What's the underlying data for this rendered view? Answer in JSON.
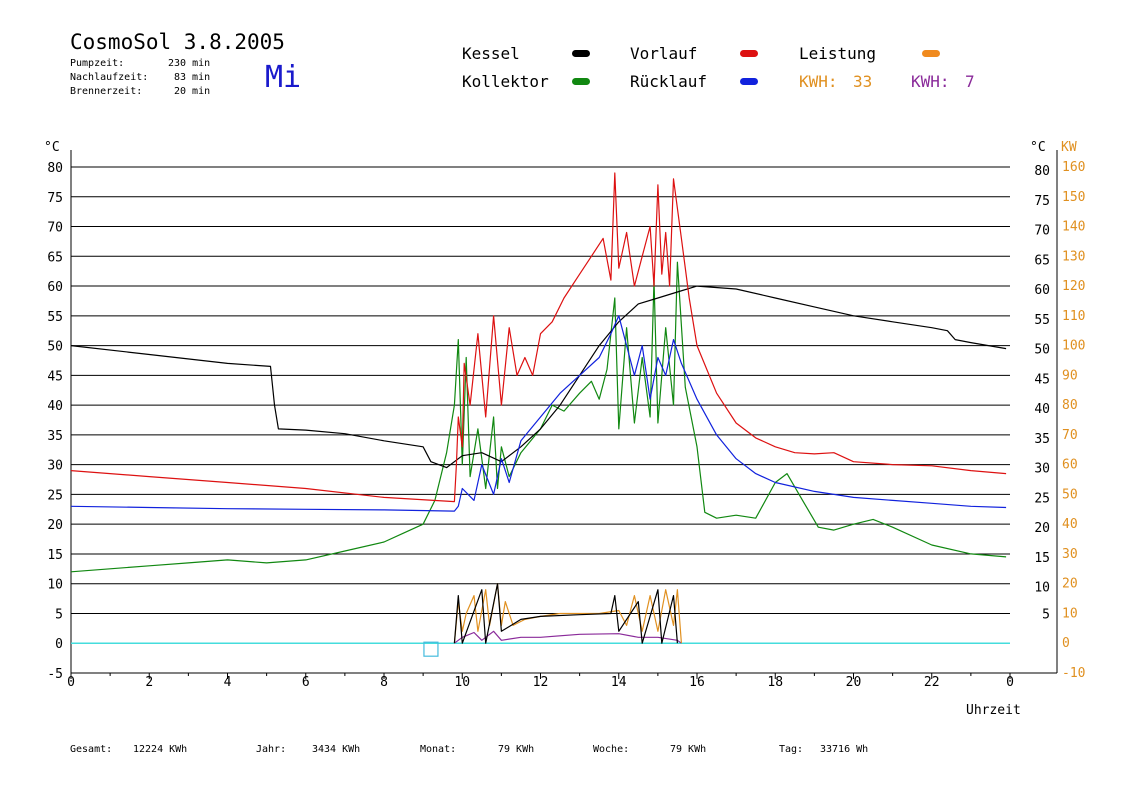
{
  "header": {
    "title": "CosmoSol 3.8.2005",
    "day": "Mi",
    "stats": [
      {
        "label": "Pumpzeit:",
        "value": "230 min"
      },
      {
        "label": "Nachlaufzeit:",
        "value": "83 min"
      },
      {
        "label": "Brennerzeit:",
        "value": "20 min"
      }
    ]
  },
  "legend": {
    "kessel": {
      "label": "Kessel",
      "color": "#000000"
    },
    "vorlauf": {
      "label": "Vorlauf",
      "color": "#dd1111"
    },
    "leistung": {
      "label": "Leistung",
      "color": "#f08a1e"
    },
    "kollektor": {
      "label": "Kollektor",
      "color": "#118811"
    },
    "ruecklauf": {
      "label": "Rücklauf",
      "color": "#1122dd"
    },
    "kwh1": {
      "label": "KWH:",
      "value": "33",
      "color": "#e09020"
    },
    "kwh2": {
      "label": "KWH:",
      "value": "7",
      "color": "#8a2a9a"
    }
  },
  "footer": [
    {
      "label": "Gesamt:",
      "value": "12224 KWh"
    },
    {
      "label": "Jahr:",
      "value": "3434 KWh"
    },
    {
      "label": "Monat:",
      "value": "79 KWh"
    },
    {
      "label": "Woche:",
      "value": "79 KWh"
    },
    {
      "label": "Tag:",
      "value": "33716 Wh"
    }
  ],
  "chart_data": {
    "type": "line",
    "xlabel": "Uhrzeit",
    "ylabel_left": "°C",
    "ylabel_right_temp": "°C",
    "ylabel_right_power": "KW",
    "xlim": [
      0,
      24
    ],
    "ylim": [
      -5,
      80
    ],
    "x_ticks": [
      "0",
      "2",
      "4",
      "6",
      "8",
      "10",
      "12",
      "14",
      "16",
      "18",
      "20",
      "22",
      "0"
    ],
    "y_ticks_left": [
      "80",
      "75",
      "70",
      "65",
      "60",
      "55",
      "50",
      "45",
      "40",
      "35",
      "30",
      "25",
      "20",
      "15",
      "10",
      "5",
      "0",
      "-5"
    ],
    "y_ticks_right_temp": [
      "80",
      "75",
      "70",
      "65",
      "60",
      "55",
      "50",
      "45",
      "40",
      "35",
      "30",
      "25",
      "20",
      "15",
      "10",
      "5"
    ],
    "y_ticks_right_power": [
      "160",
      "150",
      "140",
      "130",
      "120",
      "110",
      "100",
      "90",
      "80",
      "70",
      "60",
      "50",
      "40",
      "30",
      "20",
      "10",
      "0",
      "-10"
    ],
    "grid": true,
    "baseline": {
      "y": 0,
      "color": "#44dddd"
    },
    "marker": {
      "x": 9.2,
      "y": -1
    },
    "series": [
      {
        "name": "Kessel",
        "color": "#000000",
        "points": [
          [
            0,
            50
          ],
          [
            2,
            48.5
          ],
          [
            4,
            47
          ],
          [
            5.1,
            46.5
          ],
          [
            5.2,
            40
          ],
          [
            5.3,
            36
          ],
          [
            6,
            35.8
          ],
          [
            7,
            35.2
          ],
          [
            8,
            34
          ],
          [
            9,
            33
          ],
          [
            9.2,
            30.5
          ],
          [
            9.6,
            29.5
          ],
          [
            10,
            31.5
          ],
          [
            10.5,
            32
          ],
          [
            11,
            30.5
          ],
          [
            11.5,
            33
          ],
          [
            12,
            36
          ],
          [
            12.5,
            40
          ],
          [
            13,
            45
          ],
          [
            13.5,
            50
          ],
          [
            14,
            54
          ],
          [
            14.5,
            57
          ],
          [
            15,
            58
          ],
          [
            15.5,
            59
          ],
          [
            16,
            60
          ],
          [
            17,
            59.5
          ],
          [
            18,
            58
          ],
          [
            19,
            56.5
          ],
          [
            20,
            55
          ],
          [
            21,
            54
          ],
          [
            22,
            53
          ],
          [
            22.4,
            52.5
          ],
          [
            22.6,
            51
          ],
          [
            23,
            50.5
          ],
          [
            23.9,
            49.5
          ]
        ]
      },
      {
        "name": "Vorlauf",
        "color": "#dd1111",
        "points": [
          [
            0,
            29
          ],
          [
            2,
            28
          ],
          [
            4,
            27
          ],
          [
            6,
            26
          ],
          [
            8,
            24.5
          ],
          [
            9.8,
            23.8
          ],
          [
            9.85,
            30
          ],
          [
            9.9,
            38
          ],
          [
            10,
            33
          ],
          [
            10.05,
            47
          ],
          [
            10.2,
            40
          ],
          [
            10.4,
            52
          ],
          [
            10.6,
            38
          ],
          [
            10.8,
            55
          ],
          [
            11,
            40
          ],
          [
            11.2,
            53
          ],
          [
            11.4,
            45
          ],
          [
            11.6,
            48
          ],
          [
            11.8,
            45
          ],
          [
            12,
            52
          ],
          [
            12.3,
            54
          ],
          [
            12.6,
            58
          ],
          [
            13,
            62
          ],
          [
            13.3,
            65
          ],
          [
            13.6,
            68
          ],
          [
            13.8,
            61
          ],
          [
            13.9,
            79
          ],
          [
            14,
            63
          ],
          [
            14.2,
            69
          ],
          [
            14.4,
            60
          ],
          [
            14.6,
            65
          ],
          [
            14.8,
            70
          ],
          [
            14.9,
            60
          ],
          [
            15,
            77
          ],
          [
            15.1,
            62
          ],
          [
            15.2,
            69
          ],
          [
            15.3,
            60
          ],
          [
            15.4,
            78
          ],
          [
            15.6,
            68
          ],
          [
            15.8,
            58
          ],
          [
            16,
            50
          ],
          [
            16.5,
            42
          ],
          [
            17,
            37
          ],
          [
            17.5,
            34.5
          ],
          [
            18,
            33
          ],
          [
            18.5,
            32
          ],
          [
            19,
            31.8
          ],
          [
            19.5,
            32
          ],
          [
            20,
            30.5
          ],
          [
            21,
            30
          ],
          [
            22,
            29.8
          ],
          [
            23,
            29
          ],
          [
            23.9,
            28.5
          ]
        ]
      },
      {
        "name": "Rücklauf",
        "color": "#1122dd",
        "points": [
          [
            0,
            23
          ],
          [
            2,
            22.8
          ],
          [
            4,
            22.6
          ],
          [
            6,
            22.5
          ],
          [
            8,
            22.4
          ],
          [
            9.8,
            22.2
          ],
          [
            9.9,
            23
          ],
          [
            10,
            26
          ],
          [
            10.3,
            24
          ],
          [
            10.5,
            30
          ],
          [
            10.8,
            25
          ],
          [
            11,
            31
          ],
          [
            11.2,
            27
          ],
          [
            11.5,
            34
          ],
          [
            12,
            38
          ],
          [
            12.5,
            42
          ],
          [
            13,
            45
          ],
          [
            13.5,
            48
          ],
          [
            13.8,
            52
          ],
          [
            14,
            55
          ],
          [
            14.2,
            50
          ],
          [
            14.4,
            45
          ],
          [
            14.6,
            50
          ],
          [
            14.8,
            41
          ],
          [
            15,
            48
          ],
          [
            15.2,
            45
          ],
          [
            15.4,
            51
          ],
          [
            15.6,
            47
          ],
          [
            16,
            41
          ],
          [
            16.5,
            35
          ],
          [
            17,
            31
          ],
          [
            17.5,
            28.5
          ],
          [
            18,
            27
          ],
          [
            19,
            25.5
          ],
          [
            20,
            24.5
          ],
          [
            21,
            24
          ],
          [
            22,
            23.5
          ],
          [
            23,
            23
          ],
          [
            23.9,
            22.8
          ]
        ]
      },
      {
        "name": "Kollektor",
        "color": "#118811",
        "points": [
          [
            0,
            12
          ],
          [
            1,
            12.5
          ],
          [
            2,
            13
          ],
          [
            3,
            13.5
          ],
          [
            4,
            14
          ],
          [
            5,
            13.5
          ],
          [
            6,
            14
          ],
          [
            7,
            15.5
          ],
          [
            8,
            17
          ],
          [
            8.5,
            18.5
          ],
          [
            9,
            20
          ],
          [
            9.3,
            24
          ],
          [
            9.6,
            32
          ],
          [
            9.8,
            40
          ],
          [
            9.9,
            51
          ],
          [
            10,
            30
          ],
          [
            10.1,
            48
          ],
          [
            10.2,
            28
          ],
          [
            10.4,
            36
          ],
          [
            10.6,
            26
          ],
          [
            10.8,
            38
          ],
          [
            10.9,
            26
          ],
          [
            11,
            33
          ],
          [
            11.2,
            28
          ],
          [
            11.5,
            32
          ],
          [
            12,
            36
          ],
          [
            12.3,
            40
          ],
          [
            12.6,
            39
          ],
          [
            13,
            42
          ],
          [
            13.3,
            44
          ],
          [
            13.5,
            41
          ],
          [
            13.7,
            46
          ],
          [
            13.9,
            58
          ],
          [
            14,
            36
          ],
          [
            14.2,
            53
          ],
          [
            14.4,
            37
          ],
          [
            14.6,
            48
          ],
          [
            14.8,
            38
          ],
          [
            14.9,
            61
          ],
          [
            15,
            37
          ],
          [
            15.2,
            53
          ],
          [
            15.4,
            40
          ],
          [
            15.5,
            64
          ],
          [
            15.7,
            43
          ],
          [
            16,
            33
          ],
          [
            16.2,
            22
          ],
          [
            16.5,
            21
          ],
          [
            17,
            21.5
          ],
          [
            17.5,
            21
          ],
          [
            18,
            27
          ],
          [
            18.3,
            28.5
          ],
          [
            18.7,
            24
          ],
          [
            19.1,
            19.5
          ],
          [
            19.5,
            19
          ],
          [
            20,
            20
          ],
          [
            20.5,
            20.8
          ],
          [
            21,
            19.5
          ],
          [
            22,
            16.5
          ],
          [
            23,
            15
          ],
          [
            23.9,
            14.5
          ]
        ]
      },
      {
        "name": "Leistung",
        "color": "#e09020",
        "points": [
          [
            9.8,
            0
          ],
          [
            9.9,
            7
          ],
          [
            10,
            2
          ],
          [
            10.1,
            5
          ],
          [
            10.3,
            8
          ],
          [
            10.4,
            2
          ],
          [
            10.6,
            9
          ],
          [
            10.7,
            3
          ],
          [
            10.9,
            10
          ],
          [
            11,
            3
          ],
          [
            11.1,
            7
          ],
          [
            11.3,
            3
          ],
          [
            11.6,
            4
          ],
          [
            12,
            4.5
          ],
          [
            12.5,
            5
          ],
          [
            13,
            5
          ],
          [
            13.5,
            5
          ],
          [
            14,
            5.5
          ],
          [
            14.2,
            3
          ],
          [
            14.4,
            8
          ],
          [
            14.6,
            2
          ],
          [
            14.8,
            8
          ],
          [
            15,
            2
          ],
          [
            15.2,
            9
          ],
          [
            15.4,
            3
          ],
          [
            15.5,
            9
          ],
          [
            15.6,
            0
          ]
        ]
      },
      {
        "name": "Kessel Leistung",
        "color": "#000000",
        "points": [
          [
            9.8,
            0
          ],
          [
            9.9,
            8
          ],
          [
            10,
            0
          ],
          [
            10.5,
            9
          ],
          [
            10.6,
            0
          ],
          [
            10.9,
            10
          ],
          [
            11,
            2
          ],
          [
            11.5,
            4
          ],
          [
            12,
            4.5
          ],
          [
            13,
            4.8
          ],
          [
            13.8,
            5
          ],
          [
            13.9,
            8
          ],
          [
            14,
            2
          ],
          [
            14.5,
            7
          ],
          [
            14.6,
            0
          ],
          [
            15,
            9
          ],
          [
            15.1,
            0
          ],
          [
            15.4,
            8
          ],
          [
            15.5,
            0
          ]
        ]
      },
      {
        "name": "Leistung 2",
        "color": "#8a2a9a",
        "points": [
          [
            9.8,
            0
          ],
          [
            10,
            1
          ],
          [
            10.3,
            1.8
          ],
          [
            10.5,
            0.5
          ],
          [
            10.8,
            2
          ],
          [
            11,
            0.5
          ],
          [
            11.5,
            1
          ],
          [
            12,
            1
          ],
          [
            13,
            1.5
          ],
          [
            14,
            1.6
          ],
          [
            14.5,
            1
          ],
          [
            15,
            1
          ],
          [
            15.5,
            0.5
          ],
          [
            15.6,
            0
          ]
        ]
      }
    ]
  }
}
